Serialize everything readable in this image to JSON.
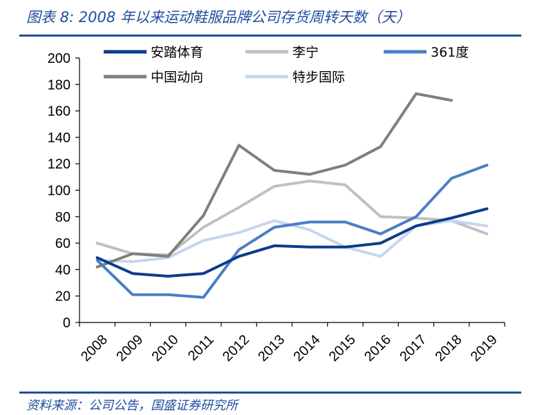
{
  "title": "图表 8:  2008 年以来运动鞋服品牌公司存货周转天数（天）",
  "source": "资料来源：公司公告，国盛证券研究所",
  "chart_data": {
    "type": "line",
    "title": "图表 8:  2008 年以来运动鞋服品牌公司存货周转天数（天）",
    "xlabel": "",
    "ylabel": "",
    "ylim": [
      0,
      200
    ],
    "yticks": [
      0,
      20,
      40,
      60,
      80,
      100,
      120,
      140,
      160,
      180,
      200
    ],
    "categories": [
      "2008",
      "2009",
      "2010",
      "2011",
      "2012",
      "2013",
      "2014",
      "2015",
      "2016",
      "2017",
      "2018",
      "2019"
    ],
    "grid": false,
    "legend_position": "top",
    "series": [
      {
        "name": "安踏体育",
        "color": "#0b3c8c",
        "values": [
          49,
          37,
          35,
          37,
          50,
          58,
          57,
          57,
          60,
          73,
          79,
          86
        ]
      },
      {
        "name": "李宁",
        "color": "#c0c0c0",
        "values": [
          60,
          52,
          51,
          72,
          87,
          103,
          107,
          104,
          80,
          79,
          77,
          67
        ]
      },
      {
        "name": "361度",
        "color": "#4a7fc3",
        "values": [
          47,
          21,
          21,
          19,
          55,
          72,
          76,
          76,
          67,
          80,
          109,
          119
        ]
      },
      {
        "name": "中国动向",
        "color": "#7f7f7f",
        "values": [
          42,
          52,
          50,
          81,
          134,
          115,
          112,
          119,
          133,
          173,
          168,
          null
        ]
      },
      {
        "name": "特步国际",
        "color": "#c5d6ee",
        "values": [
          47,
          46,
          49,
          62,
          68,
          77,
          70,
          57,
          50,
          73,
          77,
          73
        ]
      }
    ]
  }
}
